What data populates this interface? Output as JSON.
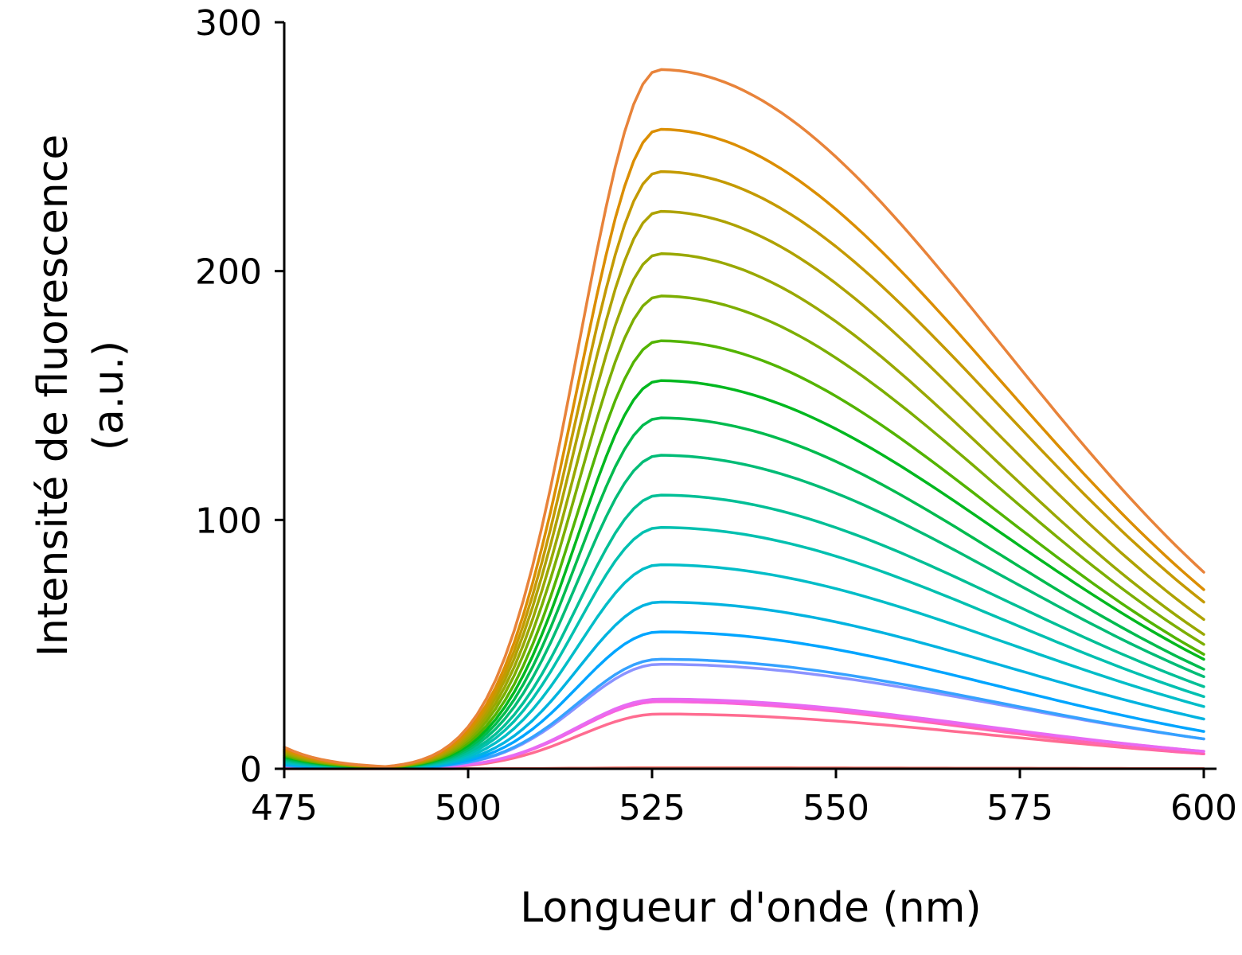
{
  "chart_data": {
    "type": "line",
    "title": "",
    "xlabel": "Longueur d'onde (nm)",
    "ylabel_line1": "Intensité de fluorescence",
    "ylabel_line2": "(a.u.)",
    "xlim": [
      475,
      600
    ],
    "ylim": [
      0,
      300
    ],
    "x_ticks": [
      475,
      500,
      525,
      550,
      575,
      600
    ],
    "y_ticks": [
      0,
      100,
      200,
      300
    ],
    "grid": false,
    "legend": "none",
    "peak_wavelength": 526,
    "series": [
      {
        "color": "#E8833A",
        "peak": 281,
        "end": 79
      },
      {
        "color": "#DB8E00",
        "peak": 257,
        "end": 72
      },
      {
        "color": "#C49A00",
        "peak": 240,
        "end": 67
      },
      {
        "color": "#AEA200",
        "peak": 224,
        "end": 60
      },
      {
        "color": "#99A800",
        "peak": 207,
        "end": 54
      },
      {
        "color": "#7CAE00",
        "peak": 190,
        "end": 50
      },
      {
        "color": "#53B400",
        "peak": 172,
        "end": 46
      },
      {
        "color": "#00B81F",
        "peak": 156,
        "end": 44
      },
      {
        "color": "#00BB4E",
        "peak": 141,
        "end": 40
      },
      {
        "color": "#00BC76",
        "peak": 126,
        "end": 37
      },
      {
        "color": "#00BF96",
        "peak": 110,
        "end": 33
      },
      {
        "color": "#00C0B0",
        "peak": 97,
        "end": 29
      },
      {
        "color": "#00BDC8",
        "peak": 82,
        "end": 25
      },
      {
        "color": "#00B3E0",
        "peak": 67,
        "end": 20
      },
      {
        "color": "#00A5FF",
        "peak": 55,
        "end": 15
      },
      {
        "color": "#35A2FF",
        "peak": 44,
        "end": 12
      },
      {
        "color": "#8B93FF",
        "peak": 42,
        "end": 12
      },
      {
        "color": "#E76BF3",
        "peak": 28,
        "end": 7
      },
      {
        "color": "#F763E0",
        "peak": 27,
        "end": 7
      },
      {
        "color": "#FF66B0",
        "peak": 27,
        "end": 6
      },
      {
        "color": "#FF6C91",
        "peak": 22,
        "end": 6
      },
      {
        "color": "#F8766D",
        "peak": 0.4,
        "end": 0.1
      }
    ]
  }
}
